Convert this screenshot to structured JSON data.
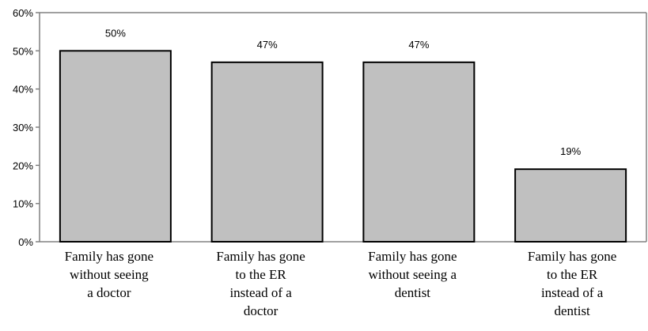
{
  "chart_data": {
    "type": "bar",
    "categories": [
      [
        "Family has gone",
        "without seeing",
        "a doctor"
      ],
      [
        "Family has gone",
        "to the ER",
        "instead of a",
        "doctor"
      ],
      [
        "Family has gone",
        "without seeing a",
        "dentist"
      ],
      [
        "Family has gone",
        "to the ER",
        "instead of a",
        "dentist"
      ]
    ],
    "values": [
      50,
      47,
      47,
      19
    ],
    "data_labels": [
      "50%",
      "47%",
      "47%",
      "19%"
    ],
    "ylim": [
      0,
      60
    ],
    "yticks": [
      0,
      10,
      20,
      30,
      40,
      50,
      60
    ],
    "ytick_labels": [
      "0%",
      "10%",
      "20%",
      "30%",
      "40%",
      "50%",
      "60%"
    ],
    "grid": false,
    "title": "",
    "xlabel": "",
    "ylabel": "",
    "colors": {
      "bar_fill": "#c0c0c0",
      "bar_stroke": "#000000",
      "axis": "#808080"
    }
  }
}
